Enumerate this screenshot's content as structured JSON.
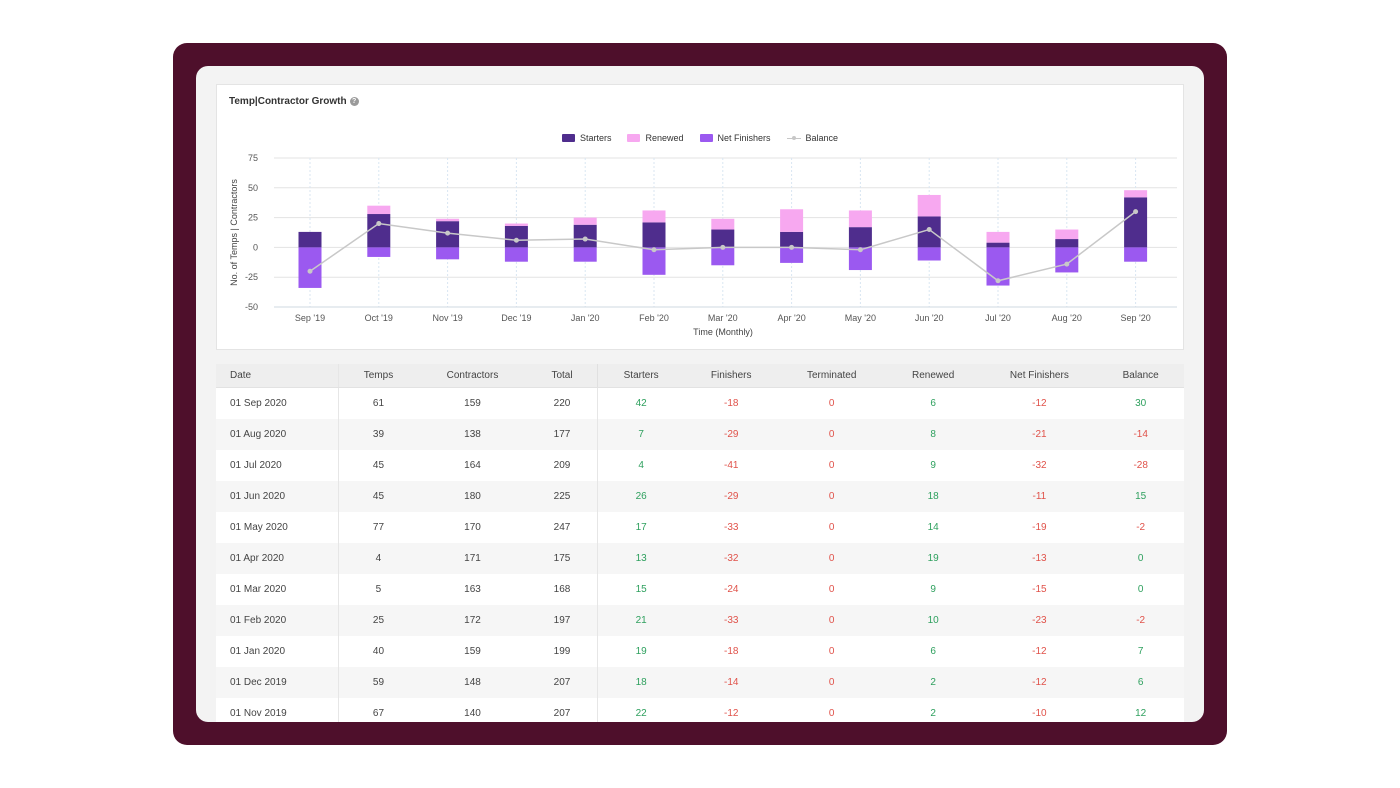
{
  "card": {
    "title": "Temp|Contractor Growth",
    "help_icon": "question-circle-icon"
  },
  "legend": {
    "starters": "Starters",
    "renewed": "Renewed",
    "net_finishers": "Net Finishers",
    "balance": "Balance"
  },
  "colors": {
    "starters": "#4f2d8d",
    "renewed": "#f7a8f0",
    "net_finishers": "#9b59f0",
    "balance": "#c8c8c8",
    "frame": "#4e0f2b"
  },
  "chart_data": {
    "type": "bar",
    "xlabel": "Time (Monthly)",
    "ylabel": "No. of Temps | Contractors",
    "ylim": [
      -50,
      75
    ],
    "yticks": [
      75,
      50,
      25,
      0,
      -25,
      -50
    ],
    "categories": [
      "Sep '19",
      "Oct '19",
      "Nov '19",
      "Dec '19",
      "Jan '20",
      "Feb '20",
      "Mar '20",
      "Apr '20",
      "May '20",
      "Jun '20",
      "Jul '20",
      "Aug '20",
      "Sep '20"
    ],
    "series": [
      {
        "name": "Starters",
        "values": [
          13,
          28,
          22,
          18,
          19,
          21,
          15,
          13,
          17,
          26,
          4,
          7,
          42
        ]
      },
      {
        "name": "Renewed",
        "values": [
          0,
          7,
          2,
          2,
          6,
          10,
          9,
          19,
          14,
          18,
          9,
          8,
          6
        ]
      },
      {
        "name": "Net Finishers",
        "values": [
          -34,
          -8,
          -10,
          -12,
          -12,
          -23,
          -15,
          -13,
          -19,
          -11,
          -32,
          -21,
          -12
        ]
      },
      {
        "name": "Balance",
        "values": [
          -20,
          20,
          12,
          6,
          7,
          -2,
          0,
          0,
          -2,
          15,
          -28,
          -14,
          30
        ]
      }
    ],
    "grid": true,
    "legend": "top-center"
  },
  "table": {
    "headers": [
      "Date",
      "Temps",
      "Contractors",
      "Total",
      "Starters",
      "Finishers",
      "Terminated",
      "Renewed",
      "Net Finishers",
      "Balance"
    ],
    "rows": [
      [
        "01 Sep 2020",
        "61",
        "159",
        "220",
        "42",
        "-18",
        "0",
        "6",
        "-12",
        "30"
      ],
      [
        "01 Aug 2020",
        "39",
        "138",
        "177",
        "7",
        "-29",
        "0",
        "8",
        "-21",
        "-14"
      ],
      [
        "01 Jul 2020",
        "45",
        "164",
        "209",
        "4",
        "-41",
        "0",
        "9",
        "-32",
        "-28"
      ],
      [
        "01 Jun 2020",
        "45",
        "180",
        "225",
        "26",
        "-29",
        "0",
        "18",
        "-11",
        "15"
      ],
      [
        "01 May 2020",
        "77",
        "170",
        "247",
        "17",
        "-33",
        "0",
        "14",
        "-19",
        "-2"
      ],
      [
        "01 Apr 2020",
        "4",
        "171",
        "175",
        "13",
        "-32",
        "0",
        "19",
        "-13",
        "0"
      ],
      [
        "01 Mar 2020",
        "5",
        "163",
        "168",
        "15",
        "-24",
        "0",
        "9",
        "-15",
        "0"
      ],
      [
        "01 Feb 2020",
        "25",
        "172",
        "197",
        "21",
        "-33",
        "0",
        "10",
        "-23",
        "-2"
      ],
      [
        "01 Jan 2020",
        "40",
        "159",
        "199",
        "19",
        "-18",
        "0",
        "6",
        "-12",
        "7"
      ],
      [
        "01 Dec 2019",
        "59",
        "148",
        "207",
        "18",
        "-14",
        "0",
        "2",
        "-12",
        "6"
      ],
      [
        "01 Nov 2019",
        "67",
        "140",
        "207",
        "22",
        "-12",
        "0",
        "2",
        "-10",
        "12"
      ]
    ]
  }
}
